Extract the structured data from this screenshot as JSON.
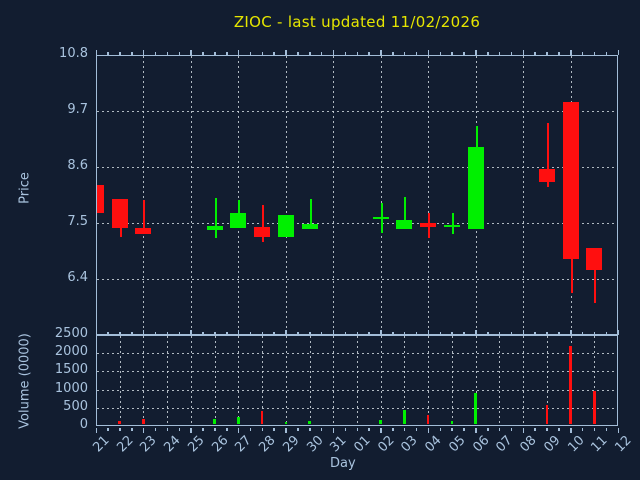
{
  "title": "ZIOC - last updated 11/02/2026",
  "colors": {
    "background": "#121d30",
    "axis": "#a3bdd8",
    "tick_label": "#a9c3de",
    "grid": "#cdd5dd",
    "title": "#e6e600",
    "up": "#00f000",
    "down": "#ff0f0f"
  },
  "chart_data": {
    "type": "candlestick+volume-bar",
    "title": "ZIOC - last updated 11/02/2026",
    "xlabel": "Day",
    "legend": "none",
    "grid": "dotted",
    "categories": [
      "21",
      "22",
      "23",
      "24",
      "25",
      "26",
      "27",
      "28",
      "29",
      "30",
      "31",
      "01",
      "02",
      "03",
      "04",
      "05",
      "06",
      "07",
      "08",
      "09",
      "10",
      "11",
      "12"
    ],
    "panels": [
      {
        "name": "price",
        "ylabel": "Price",
        "ylim": [
          5.3,
          10.8
        ],
        "yticks": [
          6.4,
          7.5,
          8.6,
          9.7,
          10.8
        ],
        "vgrid_every": "2 days"
      },
      {
        "name": "volume",
        "ylabel": "Volume (0000)",
        "ylim": [
          0,
          2500
        ],
        "yticks": [
          0,
          500,
          1000,
          1500,
          2000,
          2500
        ],
        "vgrid_every": "1 day"
      }
    ],
    "candles": [
      {
        "day": "21",
        "open": 8.25,
        "high": 8.25,
        "low": 7.7,
        "close": 7.7,
        "volume": null
      },
      {
        "day": "22",
        "open": 7.97,
        "high": 7.97,
        "low": 7.22,
        "close": 7.4,
        "volume": 130
      },
      {
        "day": "23",
        "open": 7.4,
        "high": 7.95,
        "low": 7.28,
        "close": 7.28,
        "volume": 180
      },
      {
        "day": "26",
        "open": 7.37,
        "high": 7.99,
        "low": 7.21,
        "close": 7.45,
        "volume": 180
      },
      {
        "day": "27",
        "open": 7.4,
        "high": 7.95,
        "low": 7.4,
        "close": 7.7,
        "volume": 240
      },
      {
        "day": "28",
        "open": 7.42,
        "high": 7.85,
        "low": 7.13,
        "close": 7.22,
        "volume": 400
      },
      {
        "day": "29",
        "open": 7.22,
        "high": 7.66,
        "low": 7.22,
        "close": 7.66,
        "volume": 120
      },
      {
        "day": "30",
        "open": 7.38,
        "high": 7.97,
        "low": 7.38,
        "close": 7.48,
        "volume": 140
      },
      {
        "day": "02",
        "open": 7.58,
        "high": 7.89,
        "low": 7.3,
        "close": 7.62,
        "volume": 175
      },
      {
        "day": "03",
        "open": 7.38,
        "high": 8.01,
        "low": 7.38,
        "close": 7.56,
        "volume": 450
      },
      {
        "day": "04",
        "open": 7.5,
        "high": 7.7,
        "low": 7.21,
        "close": 7.42,
        "volume": 290
      },
      {
        "day": "05",
        "open": 7.42,
        "high": 7.7,
        "low": 7.28,
        "close": 7.46,
        "volume": 150
      },
      {
        "day": "06",
        "open": 7.38,
        "high": 9.41,
        "low": 7.38,
        "close": 8.99,
        "volume": 900
      },
      {
        "day": "09",
        "open": 8.56,
        "high": 9.46,
        "low": 8.21,
        "close": 8.31,
        "volume": 580
      },
      {
        "day": "10",
        "open": 9.88,
        "high": 9.88,
        "low": 6.13,
        "close": 6.79,
        "volume": 2190
      },
      {
        "day": "11",
        "open": 7.0,
        "high": 7.0,
        "low": 5.92,
        "close": 6.57,
        "volume": 970
      }
    ]
  }
}
